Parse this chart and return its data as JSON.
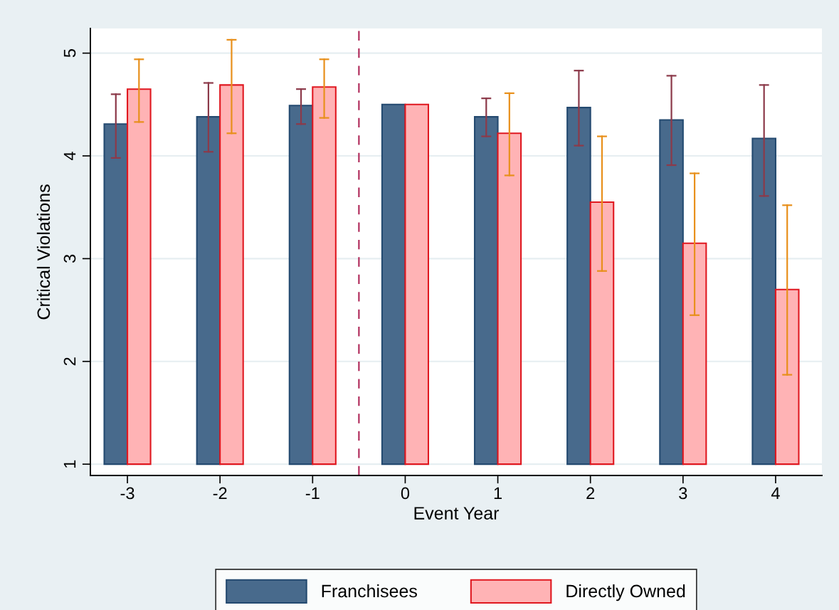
{
  "chart_data": {
    "type": "bar",
    "xlabel": "Event Year",
    "ylabel": "Critical Violations",
    "x": [
      -3,
      -2,
      -1,
      0,
      1,
      2,
      3,
      4
    ],
    "xlim": [
      -3.4,
      4.5
    ],
    "xticks": [
      {
        "value": -3,
        "label": "-3"
      },
      {
        "value": -2,
        "label": "-2"
      },
      {
        "value": -1,
        "label": "-1"
      },
      0,
      1,
      2,
      3,
      4
    ],
    "ylim": [
      0.89,
      5.24
    ],
    "yticks": [
      1,
      2,
      3,
      4,
      5
    ],
    "grid": "y",
    "legend": "bottom",
    "series": [
      {
        "name": "Franchisees",
        "color": "#486a8c",
        "base": [
          1,
          1,
          1,
          1,
          1,
          1,
          1,
          1
        ],
        "values": [
          3.31,
          3.38,
          3.49,
          3.5,
          3.38,
          3.47,
          3.35,
          3.17
        ],
        "errors": [
          [
            3.98,
            4.6
          ],
          [
            4.04,
            4.71
          ],
          [
            4.31,
            4.65
          ],
          null,
          [
            4.19,
            4.56
          ],
          [
            4.1,
            4.83
          ],
          [
            3.91,
            4.78
          ],
          [
            3.61,
            4.69
          ]
        ]
      },
      {
        "name": "Directly Owned",
        "color": "#ffb3b5",
        "base": [
          1,
          1,
          1,
          1,
          1,
          1,
          1,
          1
        ],
        "values": [
          3.65,
          3.69,
          3.67,
          3.5,
          3.22,
          2.55,
          2.15,
          1.7
        ],
        "errors": [
          [
            4.33,
            4.94
          ],
          [
            4.22,
            5.13
          ],
          [
            4.37,
            4.94
          ],
          null,
          [
            3.81,
            4.61
          ],
          [
            2.88,
            4.19
          ],
          [
            2.45,
            3.83
          ],
          [
            1.87,
            3.52
          ]
        ]
      }
    ],
    "ref_lines": [
      {
        "axis": "x",
        "value": -0.5,
        "label": null,
        "color": "#b22f5e",
        "line_style": "dashed"
      }
    ]
  }
}
